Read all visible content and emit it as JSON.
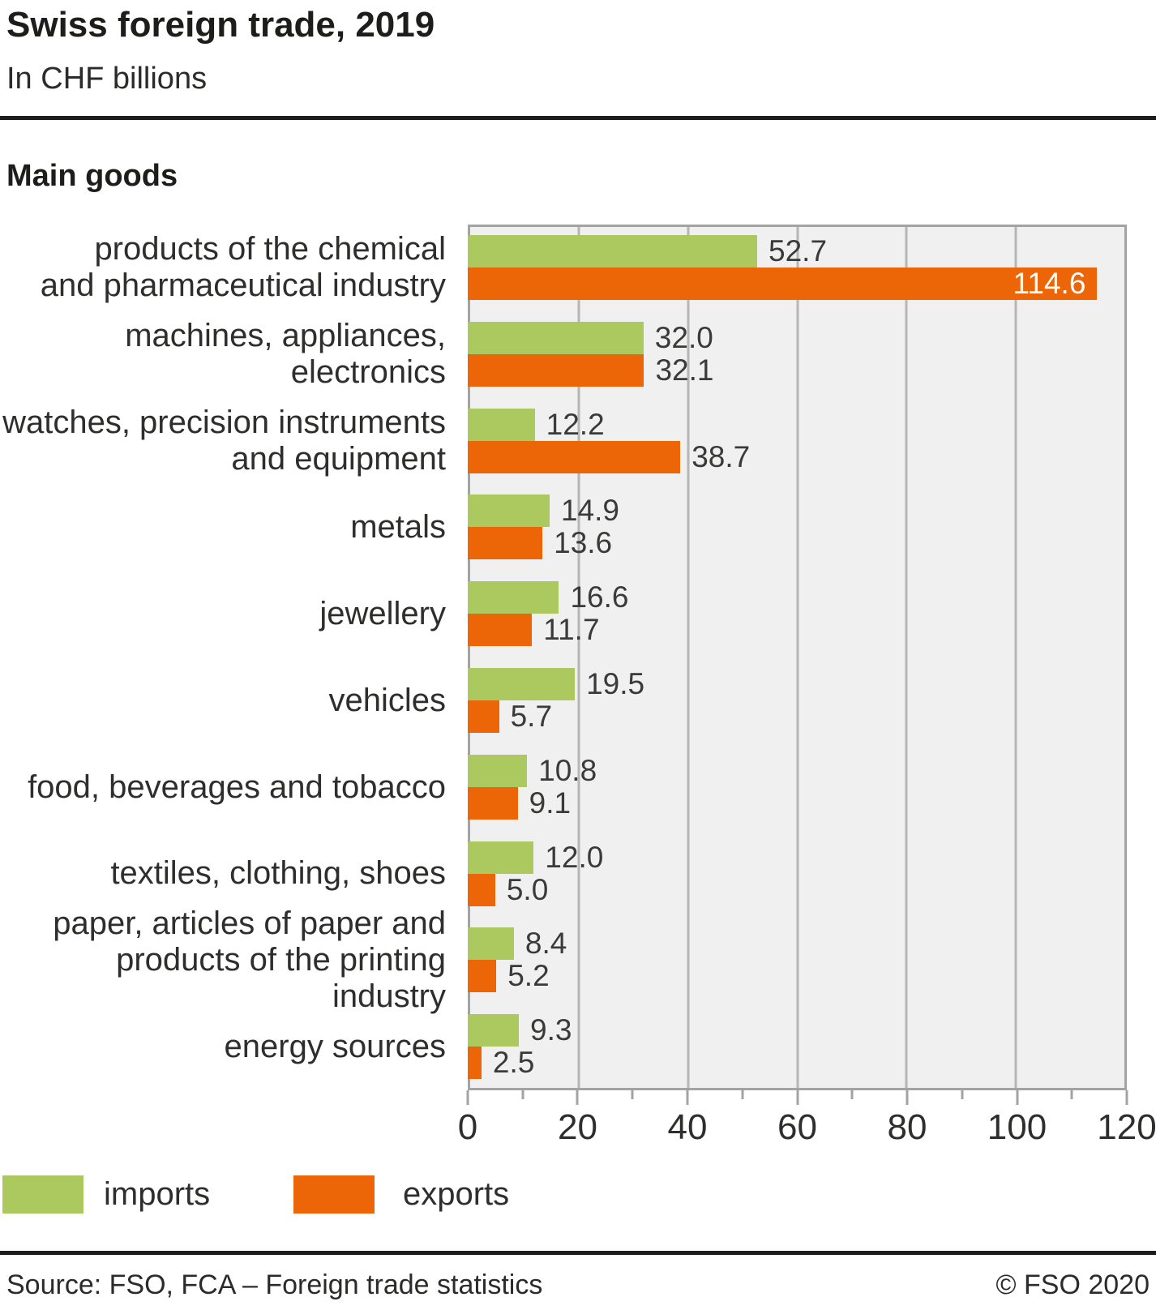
{
  "header": {
    "title": "Swiss foreign trade, 2019",
    "subtitle": "In CHF billions"
  },
  "section_title": "Main goods",
  "chart_data": {
    "type": "bar",
    "orientation": "horizontal",
    "title": "Main goods",
    "xlabel": "CHF billions",
    "ylabel": "",
    "xlim": [
      0,
      120
    ],
    "grid": "vertical gridlines every 20, plot background light gray",
    "x_ticks_major": [
      0,
      20,
      40,
      60,
      80,
      100,
      120
    ],
    "x_ticks_minor": [
      10,
      30,
      50,
      70,
      90,
      110
    ],
    "tick_label_format": [
      "0",
      "20",
      "40",
      "60",
      "80",
      "100",
      "120"
    ],
    "categories": [
      {
        "lines": [
          "products of the chemical",
          "and pharmaceutical industry"
        ]
      },
      {
        "lines": [
          "machines, appliances, electronics"
        ]
      },
      {
        "lines": [
          "watches, precision instruments",
          "and equipment"
        ]
      },
      {
        "lines": [
          "metals"
        ]
      },
      {
        "lines": [
          "jewellery"
        ]
      },
      {
        "lines": [
          "vehicles"
        ]
      },
      {
        "lines": [
          "food, beverages and tobacco"
        ]
      },
      {
        "lines": [
          "textiles, clothing, shoes"
        ]
      },
      {
        "lines": [
          "paper, articles of paper and",
          "products of the printing industry"
        ]
      },
      {
        "lines": [
          "energy sources"
        ]
      }
    ],
    "series": [
      {
        "name": "imports",
        "color": "#abc95e",
        "values": [
          52.7,
          32.0,
          12.2,
          14.9,
          16.6,
          19.5,
          10.8,
          12.0,
          8.4,
          9.3
        ],
        "labels": [
          "52.7",
          "32.0",
          "12.2",
          "14.9",
          "16.6",
          "19.5",
          "10.8",
          "12.0",
          "8.4",
          "9.3"
        ],
        "inside_label_indexes": []
      },
      {
        "name": "exports",
        "color": "#ec6608",
        "values": [
          114.6,
          32.1,
          38.7,
          13.6,
          11.7,
          5.7,
          9.1,
          5.0,
          5.2,
          2.5
        ],
        "labels": [
          "114.6",
          "32.1",
          "38.7",
          "13.6",
          "11.7",
          "5.7",
          "9.1",
          "5.0",
          "5.2",
          "2.5"
        ],
        "inside_label_indexes": [
          0
        ]
      }
    ],
    "legend": [
      {
        "label": "imports",
        "color": "#abc95e"
      },
      {
        "label": "exports",
        "color": "#ec6608"
      }
    ],
    "legend_position": "bottom-left"
  },
  "colors": {
    "imports_green": "#abc95e",
    "exports_orange": "#ec6608",
    "plot_background": "#f0f0f0",
    "gridline": "#b6b6b6",
    "axis_border": "#a3a3a3",
    "text": "#1d1d1b"
  },
  "footer": {
    "source": "Source: FSO, FCA – Foreign trade statistics",
    "copyright": "© FSO 2020"
  }
}
